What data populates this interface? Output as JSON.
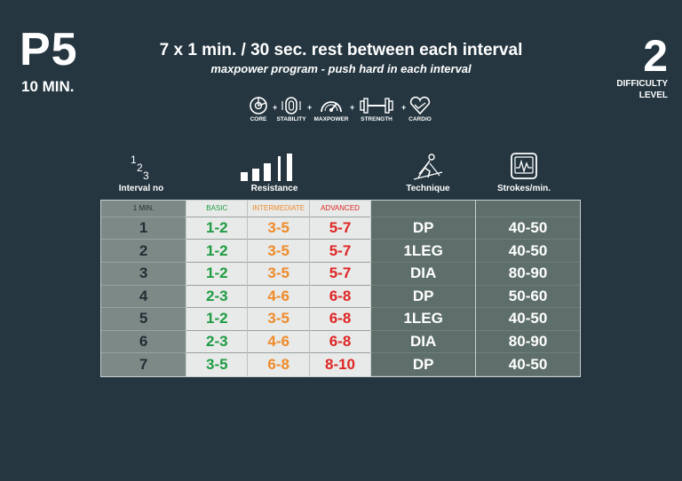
{
  "header": {
    "program_code": "P5",
    "duration": "10 MIN.",
    "title": "7 x 1 min. / 30 sec. rest between each interval",
    "subtitle": "maxpower program - push hard in each interval",
    "difficulty_number": "2",
    "difficulty_label_line1": "DIFFICULTY",
    "difficulty_label_line2": "LEVEL"
  },
  "categories": [
    {
      "label": "CORE",
      "icon": "core-icon"
    },
    {
      "label": "STABILITY",
      "icon": "stability-icon"
    },
    {
      "label": "MAXPOWER",
      "icon": "maxpower-gauge-icon"
    },
    {
      "label": "STRENGTH",
      "icon": "dumbbell-icon"
    },
    {
      "label": "CARDIO",
      "icon": "heart-icon"
    }
  ],
  "plus_sign": "+",
  "columns": {
    "interval": {
      "label": "Interval no",
      "icon": "numbers-123-icon",
      "icon_text": "123"
    },
    "resistance": {
      "label": "Resistance",
      "icon": "resistance-bars-icon"
    },
    "technique": {
      "label": "Technique",
      "icon": "skier-icon"
    },
    "strokes": {
      "label": "Strokes/min.",
      "icon": "heart-monitor-icon"
    }
  },
  "table": {
    "sub_headers": {
      "interval": "1 MIN.",
      "basic": "BASIC",
      "intermediate": "INTERMEDIATE",
      "advanced": "ADVANCED",
      "technique": "",
      "strokes": ""
    },
    "rows": [
      {
        "interval": "1",
        "basic": "1-2",
        "intermediate": "3-5",
        "advanced": "5-7",
        "technique": "DP",
        "strokes": "40-50"
      },
      {
        "interval": "2",
        "basic": "1-2",
        "intermediate": "3-5",
        "advanced": "5-7",
        "technique": "1LEG",
        "strokes": "40-50"
      },
      {
        "interval": "3",
        "basic": "1-2",
        "intermediate": "3-5",
        "advanced": "5-7",
        "technique": "DIA",
        "strokes": "80-90"
      },
      {
        "interval": "4",
        "basic": "2-3",
        "intermediate": "4-6",
        "advanced": "6-8",
        "technique": "DP",
        "strokes": "50-60"
      },
      {
        "interval": "5",
        "basic": "1-2",
        "intermediate": "3-5",
        "advanced": "6-8",
        "technique": "1LEG",
        "strokes": "40-50"
      },
      {
        "interval": "6",
        "basic": "2-3",
        "intermediate": "4-6",
        "advanced": "6-8",
        "technique": "DIA",
        "strokes": "80-90"
      },
      {
        "interval": "7",
        "basic": "3-5",
        "intermediate": "6-8",
        "advanced": "8-10",
        "technique": "DP",
        "strokes": "40-50"
      }
    ]
  },
  "colors": {
    "background": "#253640",
    "basic": "#1f9b43",
    "intermediate": "#ef8a2b",
    "advanced": "#df2525"
  }
}
